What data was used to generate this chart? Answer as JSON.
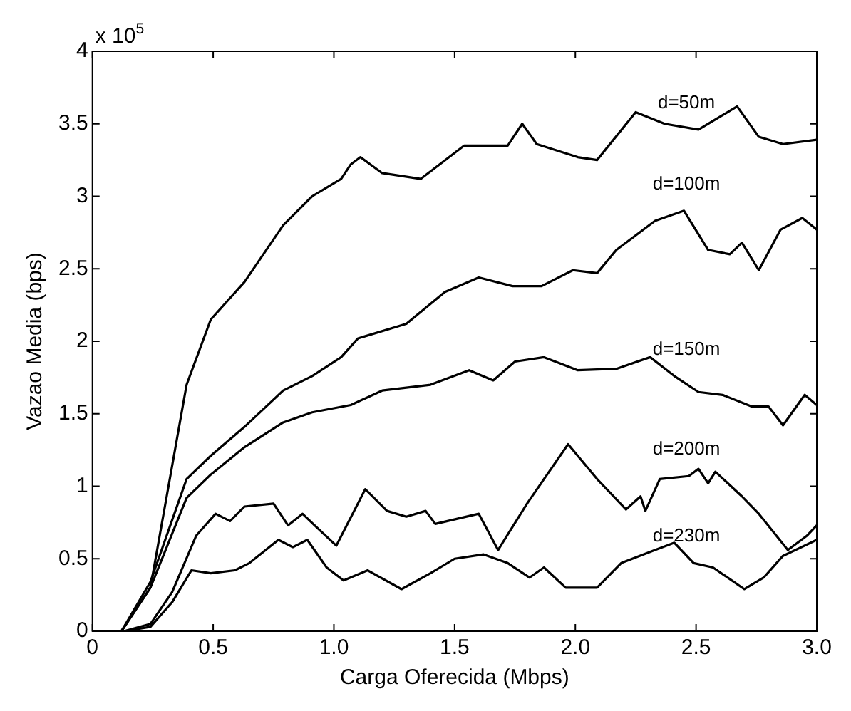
{
  "chart_data": {
    "type": "line",
    "xlabel": "Carga Oferecida (Mbps)",
    "ylabel": "Vazao Media (bps)",
    "annotations": [
      "x 10$^{5}$"
    ],
    "xlim": [
      0,
      3
    ],
    "ylim": [
      0,
      4
    ],
    "xticks": [
      0,
      0.5,
      {
        "value": 1,
        "label": "1.0"
      },
      1.5,
      {
        "value": 2,
        "label": "2.0"
      },
      2.5,
      {
        "value": 3,
        "label": "3.0"
      }
    ],
    "yticks": [
      0,
      0.5,
      1,
      1.5,
      2,
      2.5,
      3,
      3.5,
      4
    ],
    "grid": false,
    "legend": false,
    "marker": "none",
    "line_style": "solid",
    "series": [
      {
        "name": "d=50m",
        "color": "#000000",
        "x": [
          0,
          0.12,
          0.24,
          0.39,
          0.49,
          0.63,
          0.79,
          0.91,
          1.03,
          1.07,
          1.11,
          1.2,
          1.36,
          1.54,
          1.72,
          1.78,
          1.84,
          2.01,
          2.09,
          2.25,
          2.37,
          2.51,
          2.67,
          2.76,
          2.86,
          3.0
        ],
        "values": [
          0,
          0,
          0.3,
          1.7,
          2.15,
          2.41,
          2.8,
          3.0,
          3.12,
          3.22,
          3.27,
          3.16,
          3.12,
          3.35,
          3.35,
          3.5,
          3.36,
          3.27,
          3.25,
          3.58,
          3.5,
          3.46,
          3.62,
          3.41,
          3.36,
          3.39
        ]
      },
      {
        "name": "d=100m",
        "color": "#000000",
        "x": [
          0,
          0.12,
          0.24,
          0.39,
          0.49,
          0.63,
          0.79,
          0.91,
          1.03,
          1.1,
          1.3,
          1.46,
          1.6,
          1.74,
          1.86,
          1.99,
          2.09,
          2.17,
          2.33,
          2.45,
          2.55,
          2.64,
          2.69,
          2.76,
          2.85,
          2.94,
          3.0
        ],
        "values": [
          0,
          0,
          0.34,
          1.05,
          1.21,
          1.41,
          1.66,
          1.76,
          1.89,
          2.02,
          2.12,
          2.34,
          2.44,
          2.38,
          2.38,
          2.49,
          2.47,
          2.63,
          2.83,
          2.9,
          2.63,
          2.6,
          2.68,
          2.49,
          2.77,
          2.85,
          2.77
        ]
      },
      {
        "name": "d=150m",
        "color": "#000000",
        "x": [
          0,
          0.12,
          0.24,
          0.39,
          0.49,
          0.63,
          0.79,
          0.91,
          1.07,
          1.2,
          1.4,
          1.56,
          1.66,
          1.75,
          1.87,
          2.01,
          2.17,
          2.31,
          2.41,
          2.51,
          2.61,
          2.73,
          2.8,
          2.86,
          2.95,
          3.0
        ],
        "values": [
          0,
          0,
          0.3,
          0.92,
          1.08,
          1.27,
          1.44,
          1.51,
          1.56,
          1.66,
          1.7,
          1.8,
          1.73,
          1.86,
          1.89,
          1.8,
          1.81,
          1.89,
          1.76,
          1.65,
          1.63,
          1.55,
          1.55,
          1.42,
          1.63,
          1.56
        ]
      },
      {
        "name": "d=200m",
        "color": "#000000",
        "x": [
          0,
          0.13,
          0.24,
          0.33,
          0.43,
          0.51,
          0.57,
          0.63,
          0.75,
          0.81,
          0.87,
          0.92,
          1.01,
          1.13,
          1.22,
          1.3,
          1.38,
          1.42,
          1.6,
          1.68,
          1.8,
          1.97,
          2.09,
          2.21,
          2.27,
          2.29,
          2.35,
          2.47,
          2.51,
          2.55,
          2.58,
          2.69,
          2.76,
          2.88,
          2.96,
          3.0
        ],
        "values": [
          0,
          0,
          0.05,
          0.27,
          0.66,
          0.81,
          0.76,
          0.86,
          0.88,
          0.73,
          0.81,
          0.73,
          0.59,
          0.98,
          0.83,
          0.79,
          0.83,
          0.74,
          0.81,
          0.56,
          0.88,
          1.29,
          1.05,
          0.84,
          0.93,
          0.83,
          1.05,
          1.07,
          1.12,
          1.02,
          1.1,
          0.93,
          0.81,
          0.56,
          0.66,
          0.73
        ]
      },
      {
        "name": "d=230m",
        "color": "#000000",
        "x": [
          0,
          0.13,
          0.24,
          0.33,
          0.41,
          0.49,
          0.59,
          0.65,
          0.77,
          0.83,
          0.89,
          0.97,
          1.04,
          1.14,
          1.28,
          1.4,
          1.5,
          1.62,
          1.72,
          1.81,
          1.87,
          1.96,
          2.09,
          2.19,
          2.33,
          2.41,
          2.49,
          2.57,
          2.7,
          2.78,
          2.86,
          3.0
        ],
        "values": [
          0,
          0,
          0.03,
          0.2,
          0.42,
          0.4,
          0.42,
          0.47,
          0.63,
          0.58,
          0.63,
          0.44,
          0.35,
          0.42,
          0.29,
          0.4,
          0.5,
          0.53,
          0.47,
          0.37,
          0.44,
          0.3,
          0.3,
          0.47,
          0.56,
          0.61,
          0.47,
          0.44,
          0.29,
          0.37,
          0.52,
          0.63
        ]
      }
    ]
  }
}
